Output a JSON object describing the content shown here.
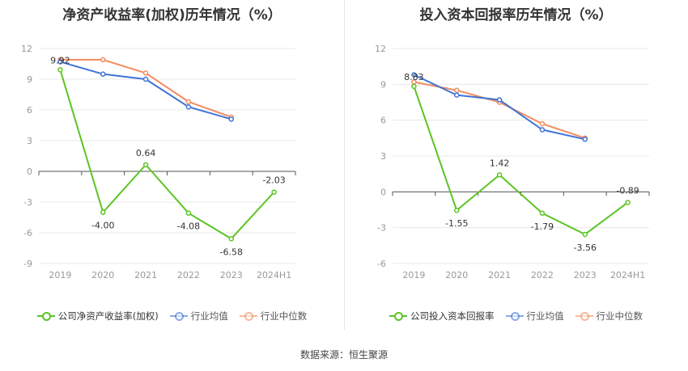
{
  "source_text": "数据来源：恒生聚源",
  "colors": {
    "company": "#5cc424",
    "industry_avg": "#3f73d6",
    "industry_median": "#f28c5e",
    "grid": "#e8e8e8",
    "axis": "#555555"
  },
  "chart_data": [
    {
      "type": "line",
      "title": "净资产收益率(加权)历年情况（%）",
      "categories": [
        "2019",
        "2020",
        "2021",
        "2022",
        "2023",
        "2024H1"
      ],
      "yticks": [
        12,
        9,
        6,
        3,
        0,
        -3,
        -6,
        -9
      ],
      "ylim": [
        -9,
        12
      ],
      "grid": true,
      "legend_position": "bottom",
      "series": [
        {
          "name": "公司净资产收益率(加权)",
          "key": "company",
          "values": [
            9.92,
            -4.0,
            0.64,
            -4.08,
            -6.58,
            -2.03
          ],
          "labels": [
            "9.92",
            "-4.00",
            "0.64",
            "-4.08",
            "-6.58",
            "-2.03"
          ]
        },
        {
          "name": "行业均值",
          "key": "industry_avg",
          "values": [
            10.7,
            9.5,
            9.0,
            6.3,
            5.1,
            null
          ]
        },
        {
          "name": "行业中位数",
          "key": "industry_median",
          "values": [
            10.9,
            10.9,
            9.6,
            6.8,
            5.3,
            null
          ]
        }
      ]
    },
    {
      "type": "line",
      "title": "投入资本回报率历年情况（%）",
      "categories": [
        "2019",
        "2020",
        "2021",
        "2022",
        "2023",
        "2024H1"
      ],
      "yticks": [
        12,
        9,
        6,
        3,
        0,
        -3,
        -6
      ],
      "ylim": [
        -6,
        12
      ],
      "grid": true,
      "legend_position": "bottom",
      "series": [
        {
          "name": "公司投入资本回报率",
          "key": "company",
          "values": [
            8.83,
            -1.55,
            1.42,
            -1.79,
            -3.56,
            -0.89
          ],
          "labels": [
            "8.83",
            "-1.55",
            "1.42",
            "-1.79",
            "-3.56",
            "-0.89"
          ]
        },
        {
          "name": "行业均值",
          "key": "industry_avg",
          "values": [
            9.8,
            8.1,
            7.7,
            5.2,
            4.4,
            null
          ]
        },
        {
          "name": "行业中位数",
          "key": "industry_median",
          "values": [
            9.2,
            8.5,
            7.5,
            5.7,
            4.5,
            null
          ]
        }
      ]
    }
  ]
}
